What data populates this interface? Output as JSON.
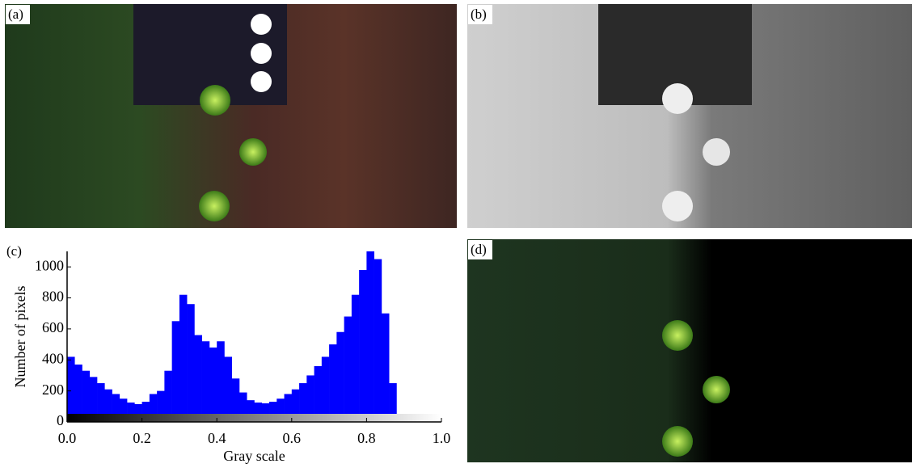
{
  "panels": [
    {
      "label": "(a)"
    },
    {
      "label": "(b)"
    },
    {
      "label": "(d)"
    }
  ],
  "chart_data": {
    "type": "histogram",
    "panel_label": "(c)",
    "x_label": "Gray scale",
    "y_label": "Number of pixels",
    "color": "#0000ff",
    "bins": [
      0.0,
      0.02,
      0.04,
      0.06,
      0.08,
      0.1,
      0.12,
      0.14,
      0.16,
      0.18,
      0.2,
      0.22,
      0.24,
      0.26,
      0.28,
      0.3,
      0.32,
      0.34,
      0.36,
      0.38,
      0.4,
      0.42,
      0.44,
      0.46,
      0.48,
      0.5,
      0.52,
      0.54,
      0.56,
      0.58,
      0.6,
      0.62,
      0.64,
      0.66,
      0.68,
      0.7,
      0.72,
      0.74,
      0.76,
      0.78,
      0.8,
      0.82,
      0.84,
      0.86,
      0.88
    ],
    "values": [
      420,
      370,
      330,
      290,
      250,
      210,
      180,
      150,
      125,
      115,
      130,
      180,
      200,
      330,
      650,
      820,
      760,
      560,
      520,
      480,
      520,
      420,
      280,
      190,
      140,
      125,
      120,
      130,
      150,
      180,
      210,
      250,
      300,
      360,
      420,
      500,
      580,
      680,
      820,
      980,
      1100,
      1050,
      700,
      250
    ],
    "xlim": [
      0,
      1
    ],
    "ylim": [
      0,
      1100
    ],
    "xticks": [
      {
        "value": 0,
        "label": "0.0"
      },
      0.2,
      0.4,
      0.6,
      0.8,
      {
        "value": 1,
        "label": "1.0"
      }
    ],
    "yticks": [
      0,
      200,
      400,
      600,
      800,
      1000
    ]
  }
}
